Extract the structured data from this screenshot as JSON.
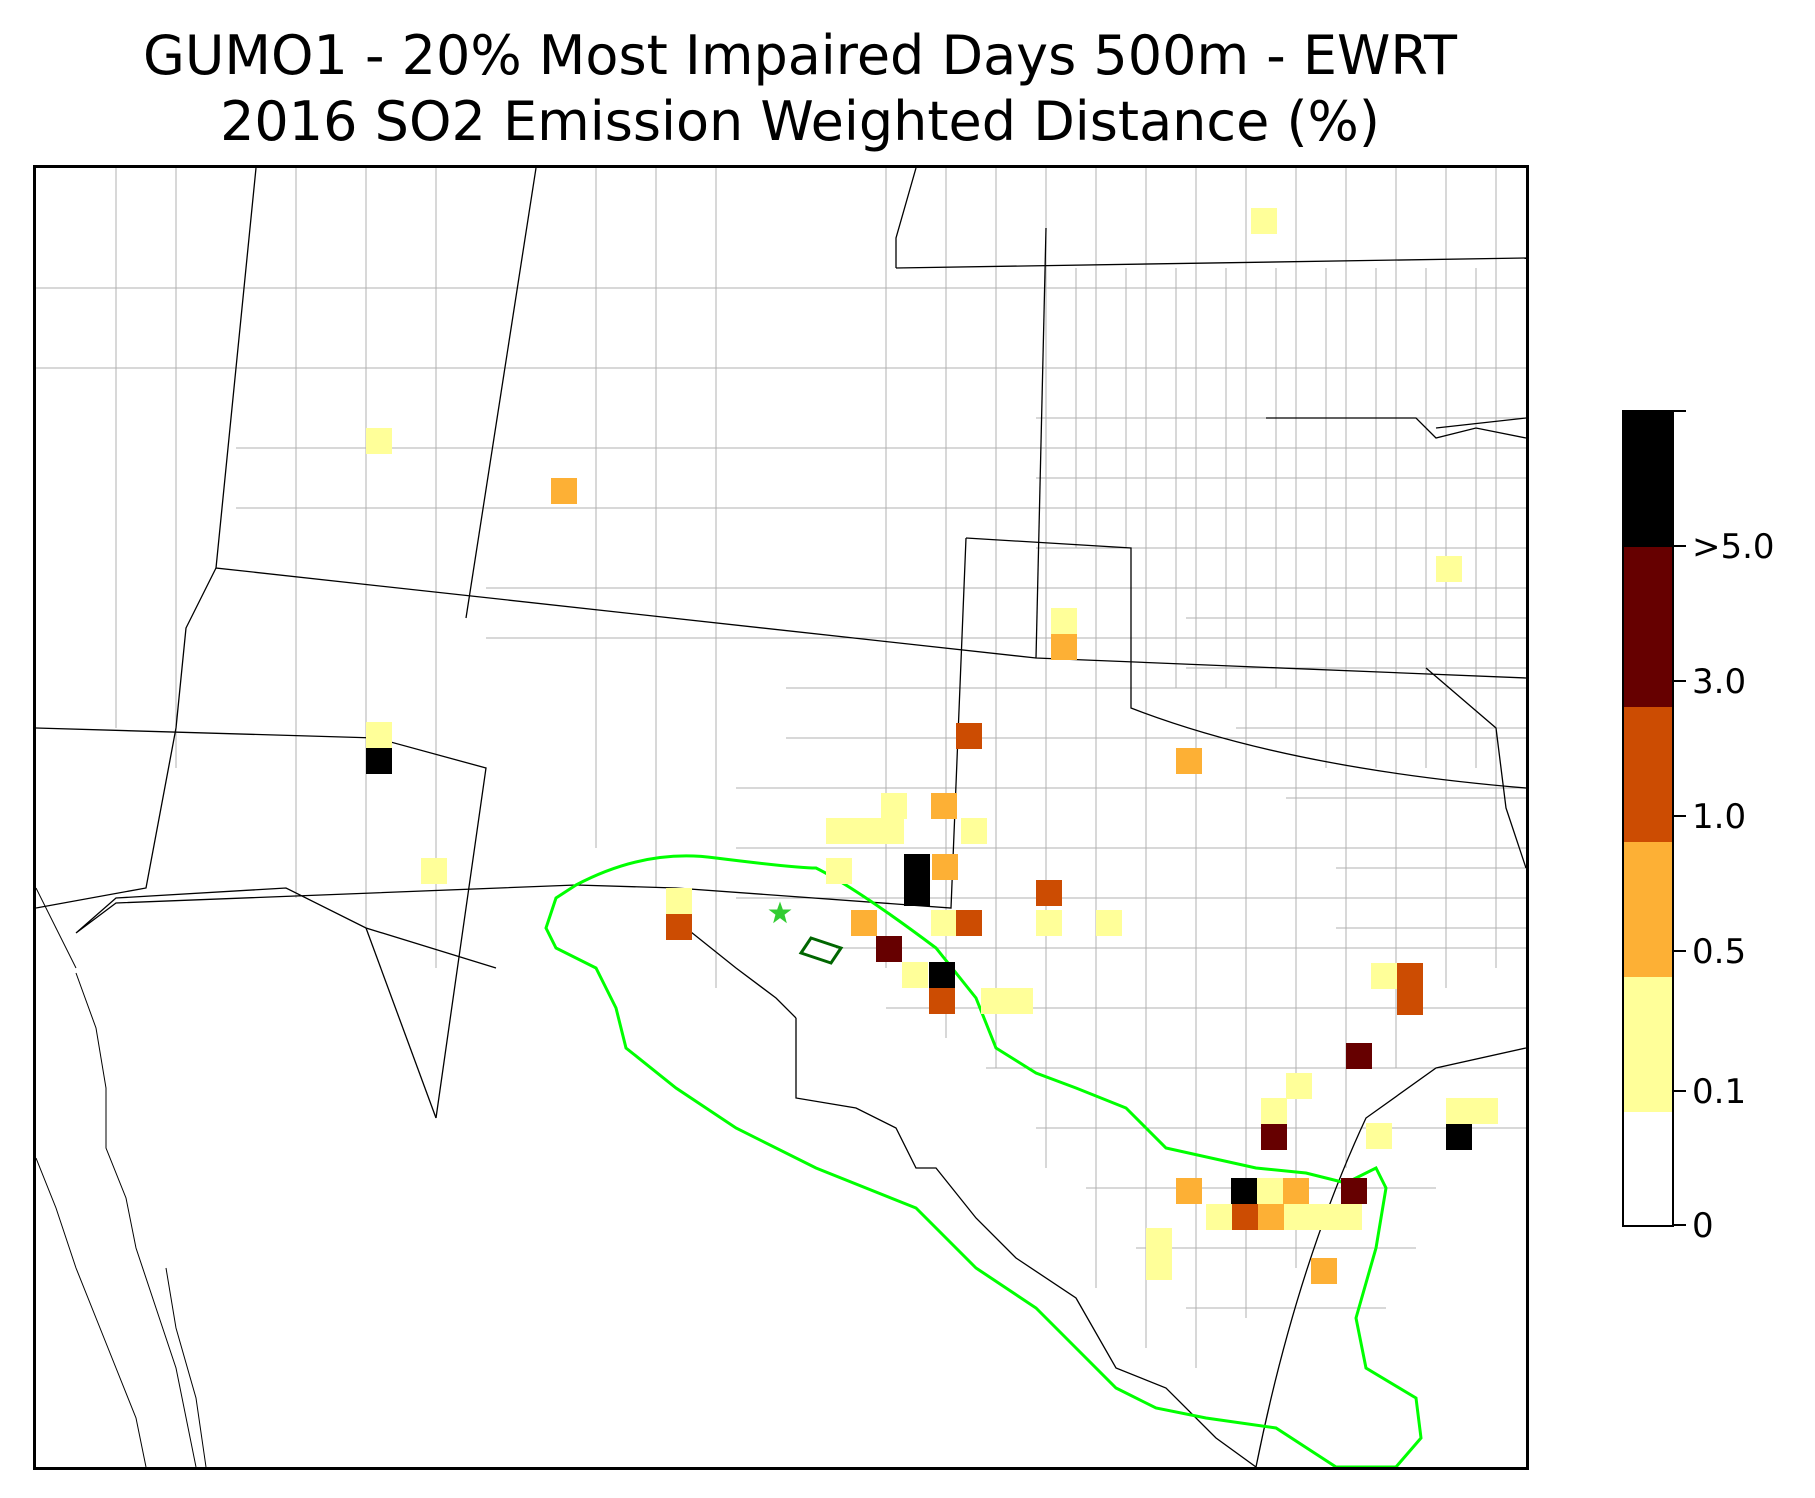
{
  "title": {
    "line1": "GUMO1 - 20% Most Impaired Days 500m - EWRT",
    "line2": "2016 SO2 Emission Weighted Distance (%)"
  },
  "colorbar": {
    "bins": [
      {
        "from": 0,
        "to": 0.1,
        "color": "#ffffff"
      },
      {
        "from": 0.1,
        "to": 0.5,
        "color": "#ffff99"
      },
      {
        "from": 0.5,
        "to": 1.0,
        "color": "#fdb035"
      },
      {
        "from": 1.0,
        "to": 3.0,
        "color": "#cc4c02"
      },
      {
        "from": 3.0,
        "to": 5.0,
        "color": "#660000"
      },
      {
        "from": 5.0,
        "to": null,
        "color": "#000000"
      }
    ],
    "tick_labels": [
      "0",
      "0.1",
      "0.5",
      "1.0",
      "3.0",
      ">5.0"
    ]
  },
  "map": {
    "site_marker": "star",
    "site_color": "#33cc33",
    "aoi_outline_color": "#00ff00",
    "park_outline_color": "#006600",
    "boundary_colors": {
      "state": "#000000",
      "county": "#aaaaaa"
    }
  }
}
